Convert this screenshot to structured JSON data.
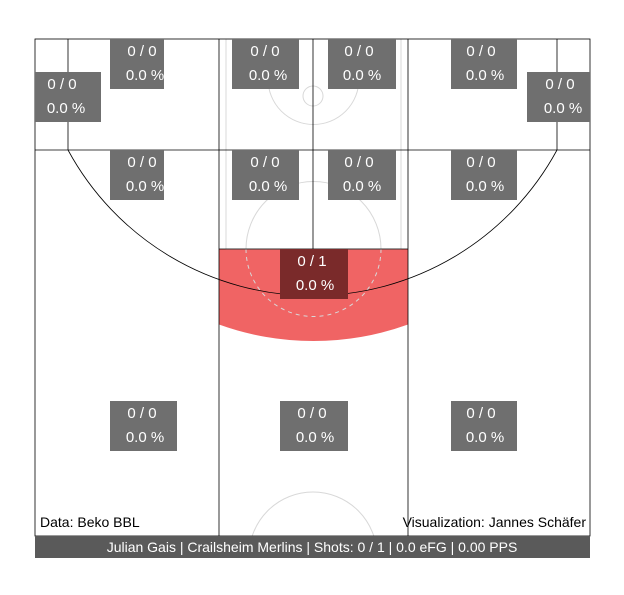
{
  "chart_data": {
    "type": "heatmap",
    "title": "",
    "zones": [
      {
        "id": "corner3-left",
        "made_attempts": "0 / 0",
        "percentage": "0.0 %",
        "attempts": 0,
        "made": 0
      },
      {
        "id": "top-left-wide",
        "made_attempts": "0 / 0",
        "percentage": "0.0 %",
        "attempts": 0,
        "made": 0
      },
      {
        "id": "top-left-lane",
        "made_attempts": "0 / 0",
        "percentage": "0.0 %",
        "attempts": 0,
        "made": 0
      },
      {
        "id": "top-right-lane",
        "made_attempts": "0 / 0",
        "percentage": "0.0 %",
        "attempts": 0,
        "made": 0
      },
      {
        "id": "top-right-wide",
        "made_attempts": "0 / 0",
        "percentage": "0.0 %",
        "attempts": 0,
        "made": 0
      },
      {
        "id": "corner3-right",
        "made_attempts": "0 / 0",
        "percentage": "0.0 %",
        "attempts": 0,
        "made": 0
      },
      {
        "id": "mid-left-baseline",
        "made_attempts": "0 / 0",
        "percentage": "0.0 %",
        "attempts": 0,
        "made": 0
      },
      {
        "id": "mid-left-lane",
        "made_attempts": "0 / 0",
        "percentage": "0.0 %",
        "attempts": 0,
        "made": 0
      },
      {
        "id": "mid-right-lane",
        "made_attempts": "0 / 0",
        "percentage": "0.0 %",
        "attempts": 0,
        "made": 0
      },
      {
        "id": "mid-right-baseline",
        "made_attempts": "0 / 0",
        "percentage": "0.0 %",
        "attempts": 0,
        "made": 0
      },
      {
        "id": "free-throw-area",
        "made_attempts": "0 / 1",
        "percentage": "0.0 %",
        "attempts": 1,
        "made": 0
      },
      {
        "id": "three-left",
        "made_attempts": "0 / 0",
        "percentage": "0.0 %",
        "attempts": 0,
        "made": 0
      },
      {
        "id": "three-center",
        "made_attempts": "0 / 0",
        "percentage": "0.0 %",
        "attempts": 0,
        "made": 0
      },
      {
        "id": "three-right",
        "made_attempts": "0 / 0",
        "percentage": "0.0 %",
        "attempts": 0,
        "made": 0
      }
    ],
    "source": "Data: Beko BBL",
    "credit": "Visualization: Jannes Schäfer",
    "summary": "Julian Gais | Crailsheim Merlins | Shots: 0 / 1 | 0.0 eFG | 0.00 PPS",
    "colors": {
      "attempted_zone_fill": "#f06464",
      "label_box": "#6f6f6f",
      "label_box_attempted": "#7a2a2a",
      "footer_bar": "#5a5a5a",
      "court_line": "#000000",
      "faint_line": "#d8d8d8"
    }
  }
}
